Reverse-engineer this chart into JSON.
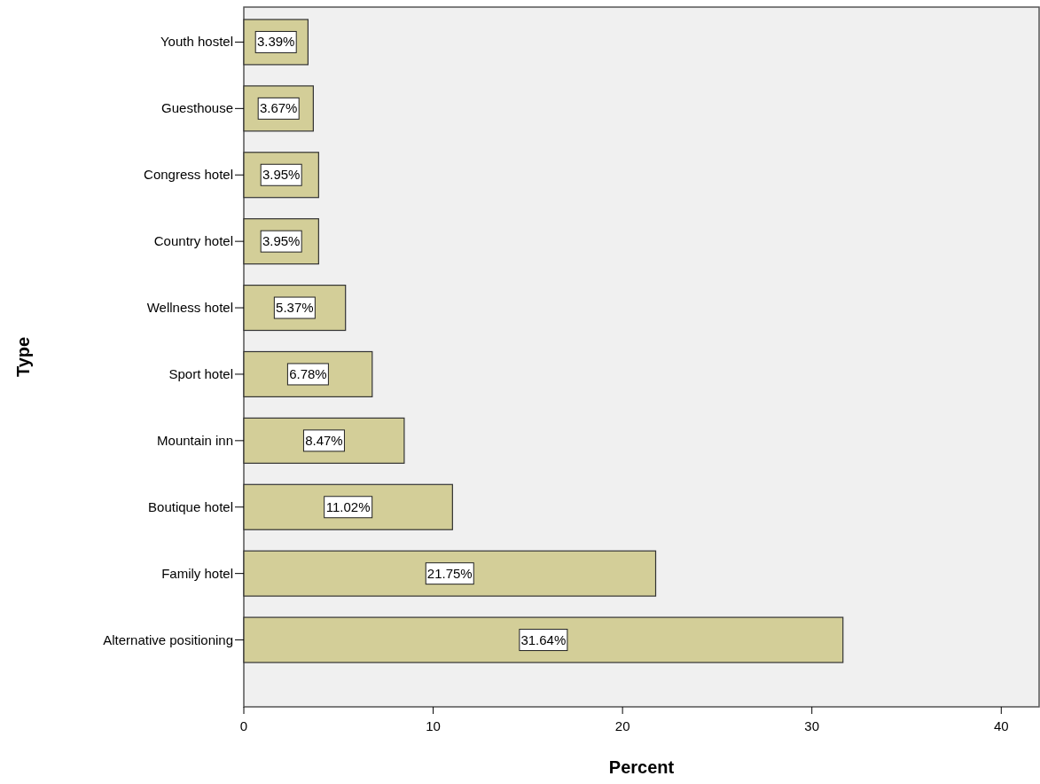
{
  "chart_data": {
    "type": "bar",
    "orientation": "horizontal",
    "xlabel": "Percent",
    "ylabel": "Type",
    "categories": [
      "Youth hostel",
      "Guesthouse",
      "Congress hotel",
      "Country hotel",
      "Wellness hotel",
      "Sport hotel",
      "Mountain inn",
      "Boutique hotel",
      "Family hotel",
      "Alternative positioning"
    ],
    "values": [
      3.39,
      3.67,
      3.95,
      3.95,
      5.37,
      6.78,
      8.47,
      11.02,
      21.75,
      31.64
    ],
    "value_labels": [
      "3.39%",
      "3.67%",
      "3.95%",
      "3.95%",
      "5.37%",
      "6.78%",
      "8.47%",
      "11.02%",
      "21.75%",
      "31.64%"
    ],
    "color": "#d3ce98",
    "xlim": [
      0,
      42
    ],
    "xticks": [
      0,
      10,
      20,
      30,
      40
    ],
    "grid": false
  }
}
